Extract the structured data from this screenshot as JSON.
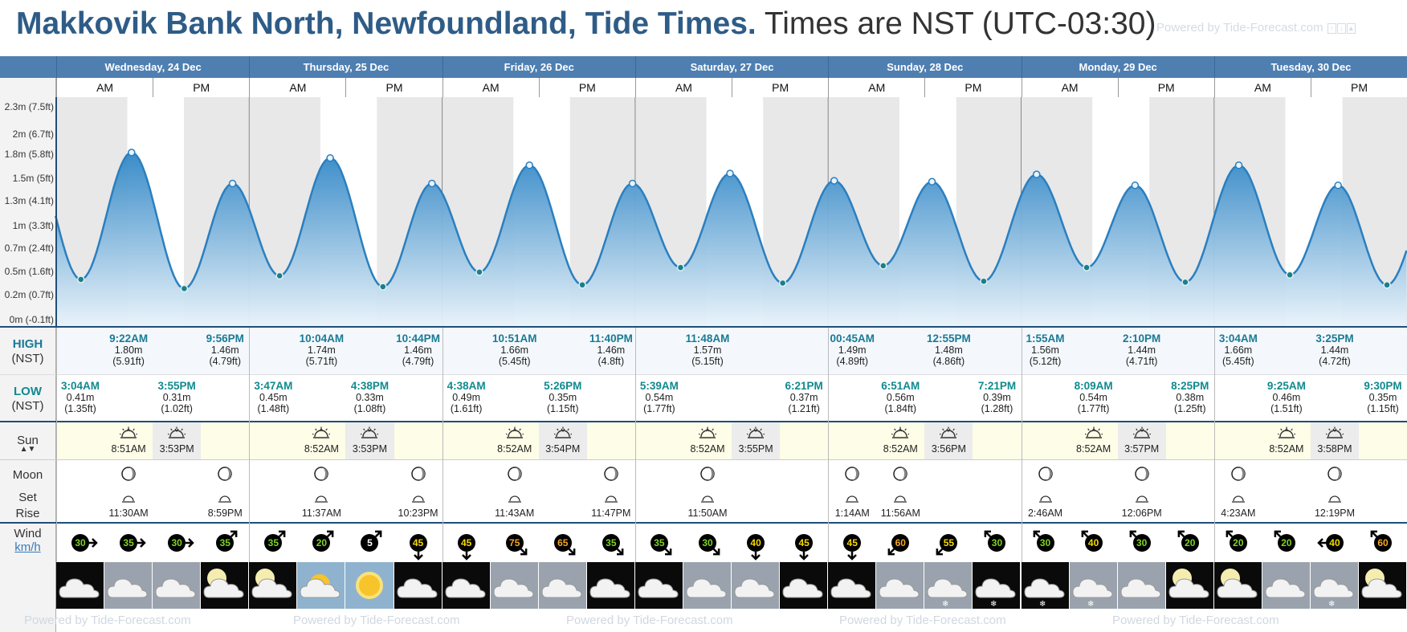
{
  "title": {
    "location": "Makkovik Bank North, Newfoundland, Tide Times.",
    "timezone": "Times are NST (UTC-03:30)",
    "powered": "Powered by Tide-Forecast.com"
  },
  "days": [
    {
      "label": "Wednesday, 24 Dec"
    },
    {
      "label": "Thursday, 25 Dec"
    },
    {
      "label": "Friday, 26 Dec"
    },
    {
      "label": "Saturday, 27 Dec"
    },
    {
      "label": "Sunday, 28 Dec"
    },
    {
      "label": "Monday, 29 Dec"
    },
    {
      "label": "Tuesday, 30 Dec"
    }
  ],
  "am_label": "AM",
  "pm_label": "PM",
  "y_axis_labels": [
    "2.3m (7.5ft)",
    "2m (6.7ft)",
    "1.8m (5.8ft)",
    "1.5m (5ft)",
    "1.3m (4.1ft)",
    "1m (3.3ft)",
    "0.7m (2.4ft)",
    "0.5m (1.6ft)",
    "0.2m (0.7ft)",
    "0m (-0.1ft)"
  ],
  "row_labels": {
    "high": "HIGH",
    "high_tz": "(NST)",
    "low": "LOW",
    "low_tz": "(NST)",
    "sun": "Sun",
    "moon": "Moon",
    "set": "Set",
    "rise": "Rise",
    "wind": "Wind",
    "wind_unit": "km/h"
  },
  "chart_data": {
    "type": "area",
    "title": "",
    "ylabel": "",
    "ylim": [
      -0.03,
      2.3
    ],
    "highs": [
      {
        "day": 0,
        "time": "9:22AM",
        "m": "1.80m",
        "ft": "(5.91ft)",
        "h": 9.37,
        "v": 1.8
      },
      {
        "day": 0,
        "time": "9:56PM",
        "m": "1.46m",
        "ft": "(4.79ft)",
        "h": 21.93,
        "v": 1.46
      },
      {
        "day": 1,
        "time": "10:04AM",
        "m": "1.74m",
        "ft": "(5.71ft)",
        "h": 10.07,
        "v": 1.74
      },
      {
        "day": 1,
        "time": "10:44PM",
        "m": "1.46m",
        "ft": "(4.79ft)",
        "h": 22.73,
        "v": 1.46
      },
      {
        "day": 2,
        "time": "10:51AM",
        "m": "1.66m",
        "ft": "(5.45ft)",
        "h": 10.85,
        "v": 1.66
      },
      {
        "day": 2,
        "time": "11:40PM",
        "m": "1.46m",
        "ft": "(4.8ft)",
        "h": 23.67,
        "v": 1.46
      },
      {
        "day": 3,
        "time": "11:48AM",
        "m": "1.57m",
        "ft": "(5.15ft)",
        "h": 11.8,
        "v": 1.57
      },
      {
        "day": 4,
        "time": "00:45AM",
        "m": "1.49m",
        "ft": "(4.89ft)",
        "h": 0.75,
        "v": 1.49
      },
      {
        "day": 4,
        "time": "12:55PM",
        "m": "1.48m",
        "ft": "(4.86ft)",
        "h": 12.92,
        "v": 1.48
      },
      {
        "day": 5,
        "time": "1:55AM",
        "m": "1.56m",
        "ft": "(5.12ft)",
        "h": 1.92,
        "v": 1.56
      },
      {
        "day": 5,
        "time": "2:10PM",
        "m": "1.44m",
        "ft": "(4.71ft)",
        "h": 14.17,
        "v": 1.44
      },
      {
        "day": 6,
        "time": "3:04AM",
        "m": "1.66m",
        "ft": "(5.45ft)",
        "h": 3.07,
        "v": 1.66
      },
      {
        "day": 6,
        "time": "3:25PM",
        "m": "1.44m",
        "ft": "(4.72ft)",
        "h": 15.42,
        "v": 1.44
      }
    ],
    "lows": [
      {
        "day": 0,
        "time": "3:04AM",
        "m": "0.41m",
        "ft": "(1.35ft)",
        "h": 3.07,
        "v": 0.41
      },
      {
        "day": 0,
        "time": "3:55PM",
        "m": "0.31m",
        "ft": "(1.02ft)",
        "h": 15.92,
        "v": 0.31
      },
      {
        "day": 1,
        "time": "3:47AM",
        "m": "0.45m",
        "ft": "(1.48ft)",
        "h": 3.78,
        "v": 0.45
      },
      {
        "day": 1,
        "time": "4:38PM",
        "m": "0.33m",
        "ft": "(1.08ft)",
        "h": 16.63,
        "v": 0.33
      },
      {
        "day": 2,
        "time": "4:38AM",
        "m": "0.49m",
        "ft": "(1.61ft)",
        "h": 4.63,
        "v": 0.49
      },
      {
        "day": 2,
        "time": "5:26PM",
        "m": "0.35m",
        "ft": "(1.15ft)",
        "h": 17.43,
        "v": 0.35
      },
      {
        "day": 3,
        "time": "5:39AM",
        "m": "0.54m",
        "ft": "(1.77ft)",
        "h": 5.65,
        "v": 0.54
      },
      {
        "day": 3,
        "time": "6:21PM",
        "m": "0.37m",
        "ft": "(1.21ft)",
        "h": 18.35,
        "v": 0.37
      },
      {
        "day": 4,
        "time": "6:51AM",
        "m": "0.56m",
        "ft": "(1.84ft)",
        "h": 6.85,
        "v": 0.56
      },
      {
        "day": 4,
        "time": "7:21PM",
        "m": "0.39m",
        "ft": "(1.28ft)",
        "h": 19.35,
        "v": 0.39
      },
      {
        "day": 5,
        "time": "8:09AM",
        "m": "0.54m",
        "ft": "(1.77ft)",
        "h": 8.15,
        "v": 0.54
      },
      {
        "day": 5,
        "time": "8:25PM",
        "m": "0.38m",
        "ft": "(1.25ft)",
        "h": 20.42,
        "v": 0.38
      },
      {
        "day": 6,
        "time": "9:25AM",
        "m": "0.46m",
        "ft": "(1.51ft)",
        "h": 9.42,
        "v": 0.46
      },
      {
        "day": 6,
        "time": "9:30PM",
        "m": "0.35m",
        "ft": "(1.15ft)",
        "h": 21.5,
        "v": 0.35
      }
    ]
  },
  "sun": [
    {
      "rise": "8:51AM",
      "set": "3:53PM"
    },
    {
      "rise": "8:52AM",
      "set": "3:53PM"
    },
    {
      "rise": "8:52AM",
      "set": "3:54PM"
    },
    {
      "rise": "8:52AM",
      "set": "3:55PM"
    },
    {
      "rise": "8:52AM",
      "set": "3:56PM"
    },
    {
      "rise": "8:52AM",
      "set": "3:57PM"
    },
    {
      "rise": "8:52AM",
      "set": "3:58PM"
    }
  ],
  "moon": [
    {
      "day": 0,
      "slot": 1,
      "time": "11:30AM",
      "type": "rise"
    },
    {
      "day": 0,
      "slot": 3,
      "time": "8:59PM",
      "type": "set"
    },
    {
      "day": 1,
      "slot": 1,
      "time": "11:37AM",
      "type": "rise"
    },
    {
      "day": 1,
      "slot": 3,
      "time": "10:23PM",
      "type": "set"
    },
    {
      "day": 2,
      "slot": 1,
      "time": "11:43AM",
      "type": "rise"
    },
    {
      "day": 2,
      "slot": 3,
      "time": "11:47PM",
      "type": "set"
    },
    {
      "day": 3,
      "slot": 1,
      "time": "11:50AM",
      "type": "rise"
    },
    {
      "day": 4,
      "slot": 0,
      "time": "1:14AM",
      "type": "set"
    },
    {
      "day": 4,
      "slot": 1,
      "time": "11:56AM",
      "type": "rise"
    },
    {
      "day": 5,
      "slot": 0,
      "time": "2:46AM",
      "type": "set"
    },
    {
      "day": 5,
      "slot": 2,
      "time": "12:06PM",
      "type": "rise"
    },
    {
      "day": 6,
      "slot": 0,
      "time": "4:23AM",
      "type": "set"
    },
    {
      "day": 6,
      "slot": 2,
      "time": "12:19PM",
      "type": "rise"
    }
  ],
  "wind": [
    {
      "v": "30",
      "c": "#7ed321",
      "dir": "right"
    },
    {
      "v": "35",
      "c": "#7ed321",
      "dir": "right"
    },
    {
      "v": "30",
      "c": "#7ed321",
      "dir": "right"
    },
    {
      "v": "35",
      "c": "#7ed321",
      "dir": "upright"
    },
    {
      "v": "35",
      "c": "#7ed321",
      "dir": "upright"
    },
    {
      "v": "20",
      "c": "#7ed321",
      "dir": "upright"
    },
    {
      "v": "5",
      "c": "#ffffff",
      "dir": "upright"
    },
    {
      "v": "45",
      "c": "#f5d800",
      "dir": "down"
    },
    {
      "v": "45",
      "c": "#f5d800",
      "dir": "down"
    },
    {
      "v": "75",
      "c": "#f5a623",
      "dir": "downright"
    },
    {
      "v": "65",
      "c": "#f5a623",
      "dir": "downright"
    },
    {
      "v": "35",
      "c": "#7ed321",
      "dir": "downright"
    },
    {
      "v": "35",
      "c": "#7ed321",
      "dir": "downright"
    },
    {
      "v": "30",
      "c": "#7ed321",
      "dir": "downright"
    },
    {
      "v": "40",
      "c": "#f5d800",
      "dir": "down"
    },
    {
      "v": "45",
      "c": "#f5d800",
      "dir": "down"
    },
    {
      "v": "45",
      "c": "#f5d800",
      "dir": "down"
    },
    {
      "v": "60",
      "c": "#f5a623",
      "dir": "downleft"
    },
    {
      "v": "55",
      "c": "#f5d800",
      "dir": "downleft"
    },
    {
      "v": "30",
      "c": "#7ed321",
      "dir": "upleft"
    },
    {
      "v": "30",
      "c": "#7ed321",
      "dir": "upleft"
    },
    {
      "v": "40",
      "c": "#f5d800",
      "dir": "upleft"
    },
    {
      "v": "30",
      "c": "#7ed321",
      "dir": "upleft"
    },
    {
      "v": "20",
      "c": "#7ed321",
      "dir": "upleft"
    },
    {
      "v": "20",
      "c": "#7ed321",
      "dir": "upleft"
    },
    {
      "v": "20",
      "c": "#7ed321",
      "dir": "upleft"
    },
    {
      "v": "40",
      "c": "#f5d800",
      "dir": "left"
    },
    {
      "v": "60",
      "c": "#f5a623",
      "dir": "upleft"
    }
  ],
  "weather": [
    {
      "icon": "cloud-night-icon"
    },
    {
      "icon": "cloud-icon"
    },
    {
      "icon": "cloud-icon"
    },
    {
      "icon": "moon-cloud-icon"
    },
    {
      "icon": "moon-cloud-icon"
    },
    {
      "icon": "sun-cloud-icon"
    },
    {
      "icon": "sun-icon"
    },
    {
      "icon": "cloud-night-icon"
    },
    {
      "icon": "cloud-night-icon"
    },
    {
      "icon": "cloud-icon"
    },
    {
      "icon": "cloud-icon"
    },
    {
      "icon": "cloud-night-icon"
    },
    {
      "icon": "cloud-night-icon"
    },
    {
      "icon": "cloud-icon"
    },
    {
      "icon": "cloud-icon"
    },
    {
      "icon": "cloud-night-icon"
    },
    {
      "icon": "cloud-night-icon"
    },
    {
      "icon": "cloud-icon"
    },
    {
      "icon": "snow-cloud-icon"
    },
    {
      "icon": "snow-cloud-night-icon"
    },
    {
      "icon": "snow-cloud-night-icon"
    },
    {
      "icon": "snow-cloud-icon"
    },
    {
      "icon": "cloud-icon"
    },
    {
      "icon": "moon-cloud-icon"
    },
    {
      "icon": "moon-cloud-icon"
    },
    {
      "icon": "cloud-icon"
    },
    {
      "icon": "snow-cloud-icon"
    },
    {
      "icon": "moon-cloud-icon"
    }
  ]
}
